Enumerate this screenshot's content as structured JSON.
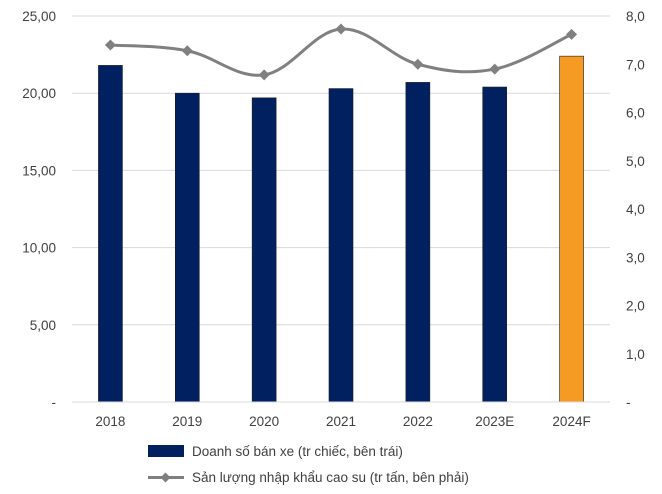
{
  "chart_data": {
    "type": "bar",
    "categories": [
      "2018",
      "2019",
      "2020",
      "2021",
      "2022",
      "2023E",
      "2024F"
    ],
    "series": [
      {
        "name": "Doanh số bán xe (tr chiếc, bên trái)",
        "type": "bar",
        "axis": "left",
        "values": [
          21.8,
          20.0,
          19.7,
          20.3,
          20.7,
          20.4,
          22.4
        ],
        "color": "#002060",
        "highlight": {
          "index": 6,
          "color": "#F59A23"
        }
      },
      {
        "name": "Sản lượng nhập khẩu cao su (tr tấn, bên phải)",
        "type": "line",
        "axis": "right",
        "values": [
          7.4,
          7.28,
          6.78,
          7.73,
          7.0,
          6.9,
          7.62
        ],
        "color": "#808080"
      }
    ],
    "y_left": {
      "min": 0,
      "max": 25,
      "ticks": [
        "-",
        "5,00",
        "10,00",
        "15,00",
        "20,00",
        "25,00"
      ]
    },
    "y_right": {
      "min": 0,
      "max": 8,
      "ticks": [
        "-",
        "1,0",
        "2,0",
        "3,0",
        "4,0",
        "5,0",
        "6,0",
        "7,0",
        "8,0"
      ]
    },
    "grid": "horizontal",
    "legend_position": "bottom"
  }
}
